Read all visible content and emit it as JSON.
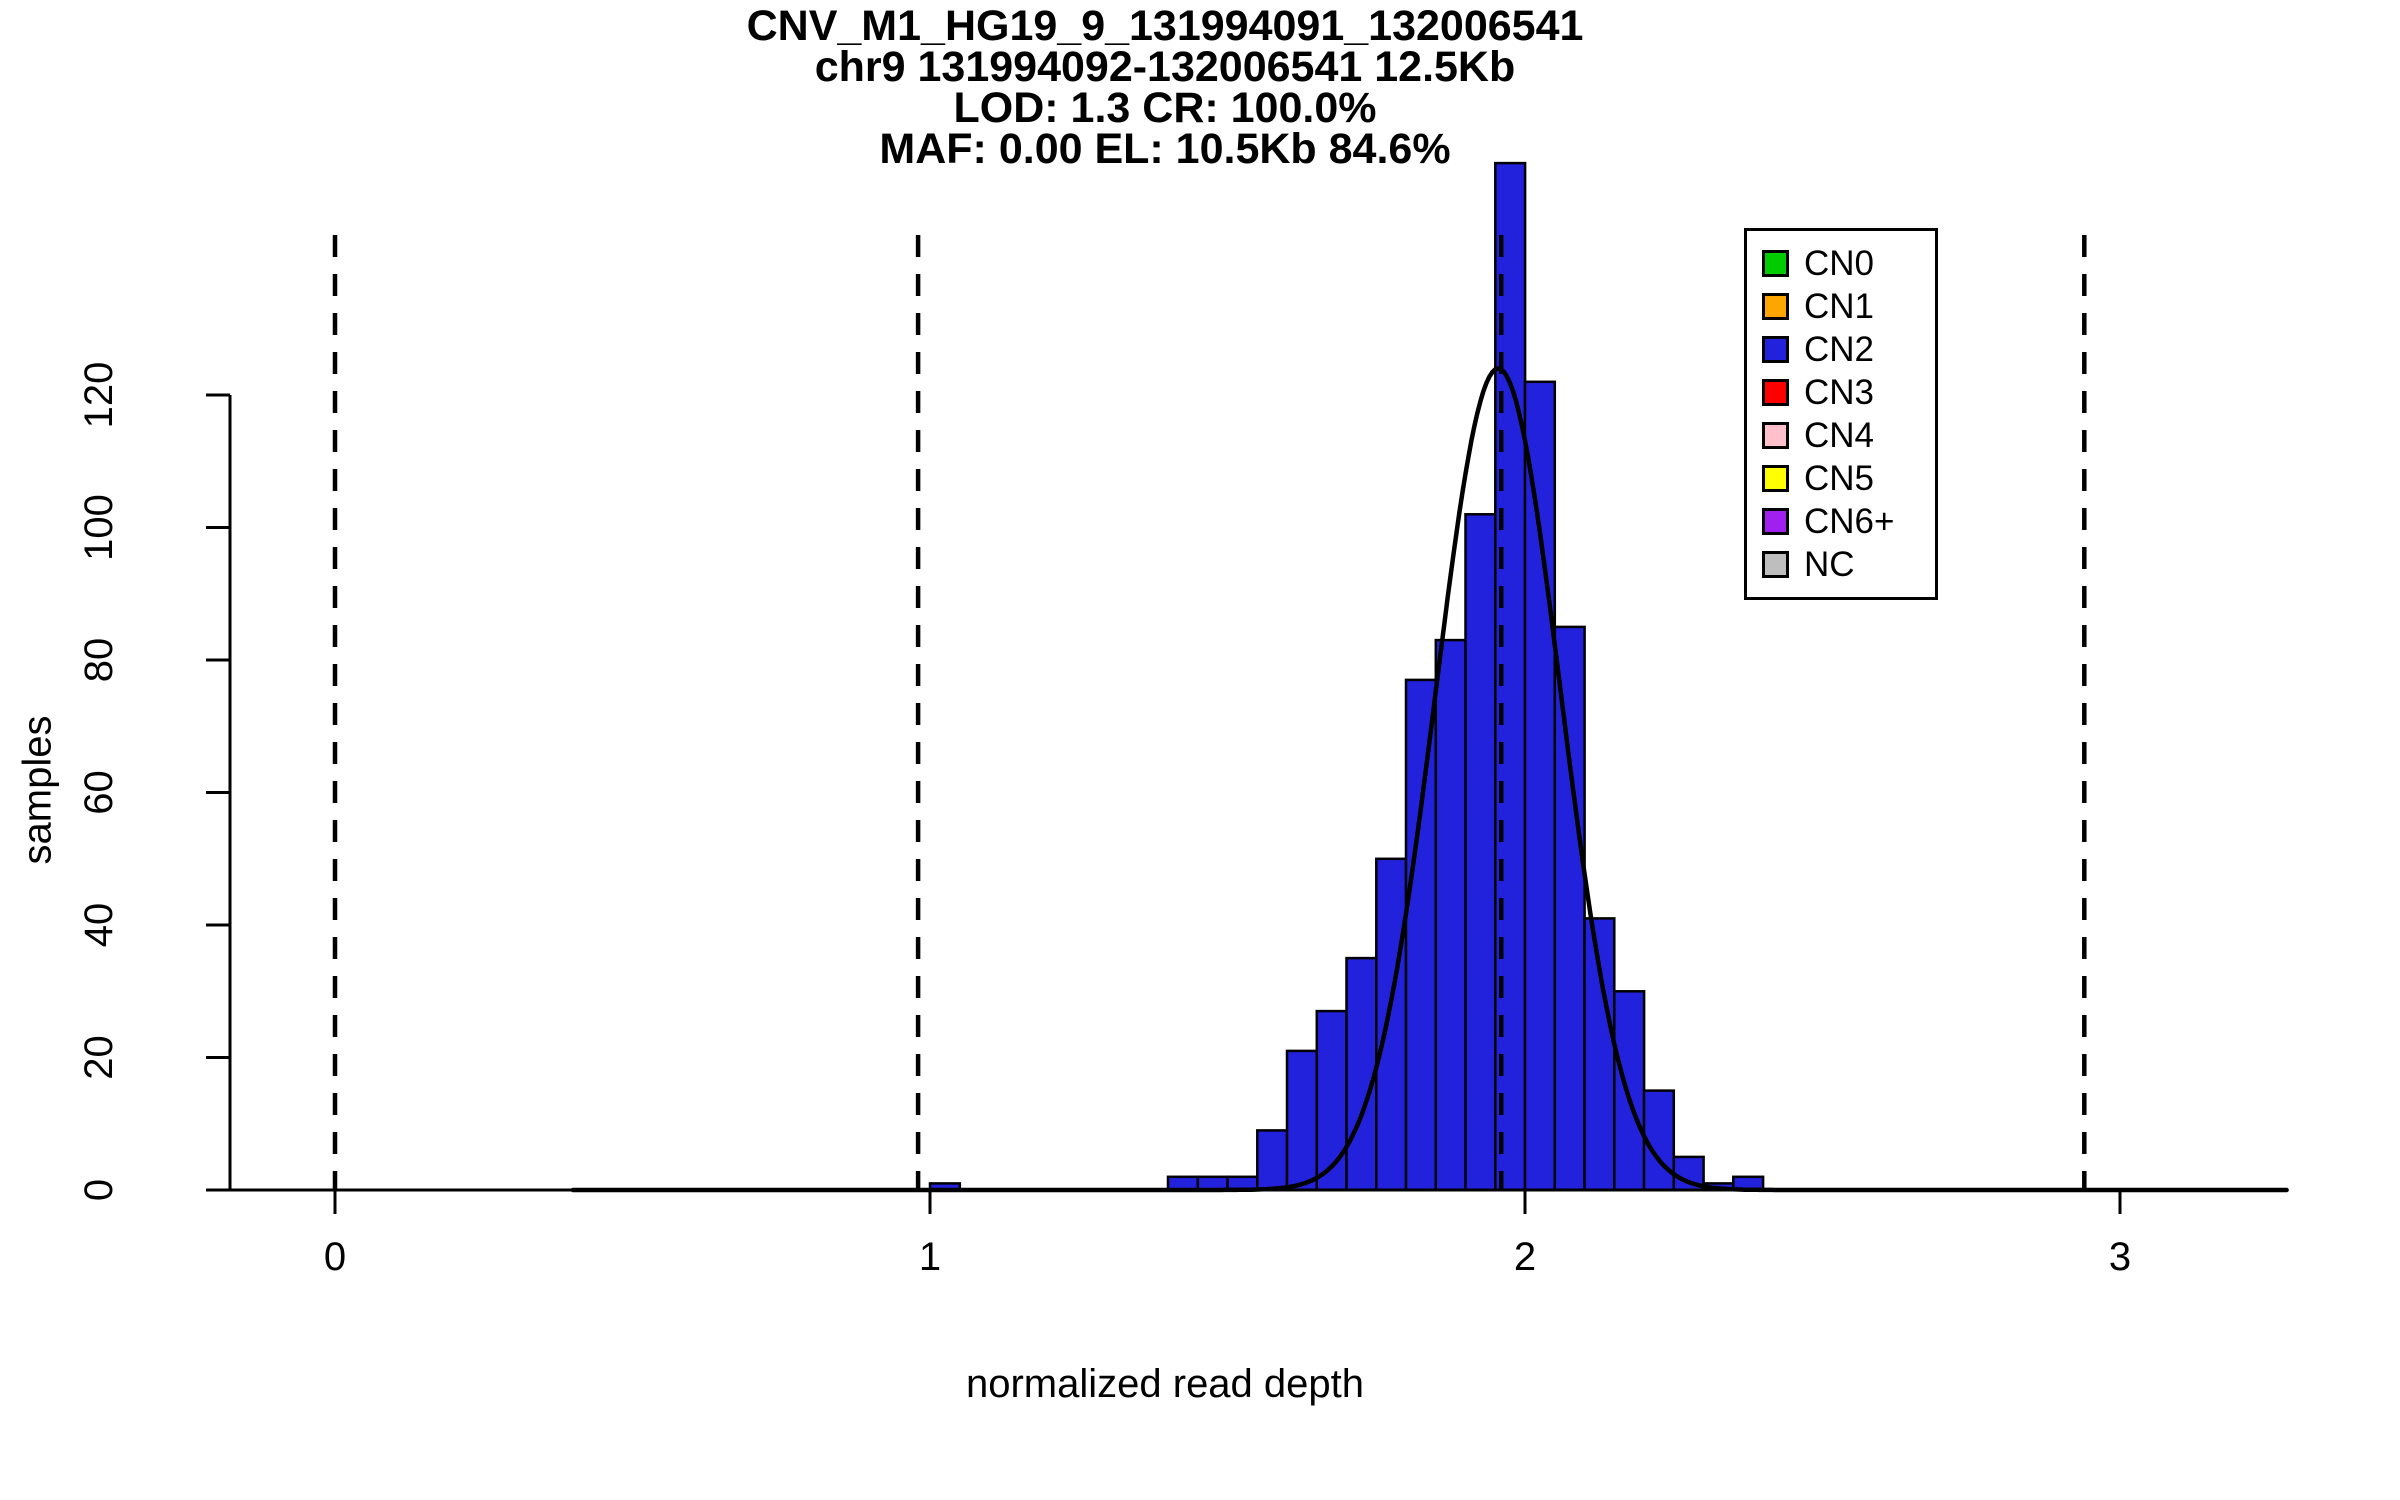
{
  "page": {
    "background": "#FFFFFF",
    "axis_color": "#000000"
  },
  "chart_data": {
    "type": "bar",
    "chart_kind": "histogram-with-density-curve",
    "title_lines": [
      "CNV_M1_HG19_9_131994091_132006541",
      "chr9 131994092-132006541 12.5Kb",
      "LOD: 1.3 CR: 100.0%",
      "MAF: 0.00 EL: 10.5Kb 84.6%"
    ],
    "xlabel": "normalized read depth",
    "ylabel": "samples",
    "x_ticks": [
      0,
      1,
      2,
      3
    ],
    "y_ticks": [
      0,
      20,
      40,
      60,
      80,
      100,
      120
    ],
    "xlim": [
      -0.18,
      3.28
    ],
    "ylim": [
      0,
      155
    ],
    "grid": false,
    "bin_width": 0.05,
    "bar_color": "#2222DD",
    "bar_border_color": "#000000",
    "bins": [
      {
        "x": 1.0,
        "count": 1
      },
      {
        "x": 1.4,
        "count": 2
      },
      {
        "x": 1.45,
        "count": 2
      },
      {
        "x": 1.5,
        "count": 2
      },
      {
        "x": 1.55,
        "count": 9
      },
      {
        "x": 1.6,
        "count": 21
      },
      {
        "x": 1.65,
        "count": 27
      },
      {
        "x": 1.7,
        "count": 35
      },
      {
        "x": 1.75,
        "count": 50
      },
      {
        "x": 1.8,
        "count": 77
      },
      {
        "x": 1.85,
        "count": 83
      },
      {
        "x": 1.9,
        "count": 102
      },
      {
        "x": 1.95,
        "count": 155
      },
      {
        "x": 2.0,
        "count": 122
      },
      {
        "x": 2.05,
        "count": 85
      },
      {
        "x": 2.1,
        "count": 41
      },
      {
        "x": 2.15,
        "count": 30
      },
      {
        "x": 2.2,
        "count": 15
      },
      {
        "x": 2.25,
        "count": 5
      },
      {
        "x": 2.3,
        "count": 1
      },
      {
        "x": 2.35,
        "count": 2
      }
    ],
    "dashed_lines_x": [
      0,
      0.98,
      1.96,
      2.94
    ],
    "curve": {
      "mean": 1.955,
      "sd": 0.105,
      "peak": 124,
      "color": "#000000"
    },
    "legend": {
      "position": "top-right",
      "items": [
        {
          "label": "CN0",
          "color": "#00CD00"
        },
        {
          "label": "CN1",
          "color": "#FFA500"
        },
        {
          "label": "CN2",
          "color": "#2222DD"
        },
        {
          "label": "CN3",
          "color": "#FF0000"
        },
        {
          "label": "CN4",
          "color": "#FFC0CB"
        },
        {
          "label": "CN5",
          "color": "#FFFF00"
        },
        {
          "label": "CN6+",
          "color": "#A020F0"
        },
        {
          "label": "NC",
          "color": "#BEBEBE"
        }
      ]
    }
  }
}
